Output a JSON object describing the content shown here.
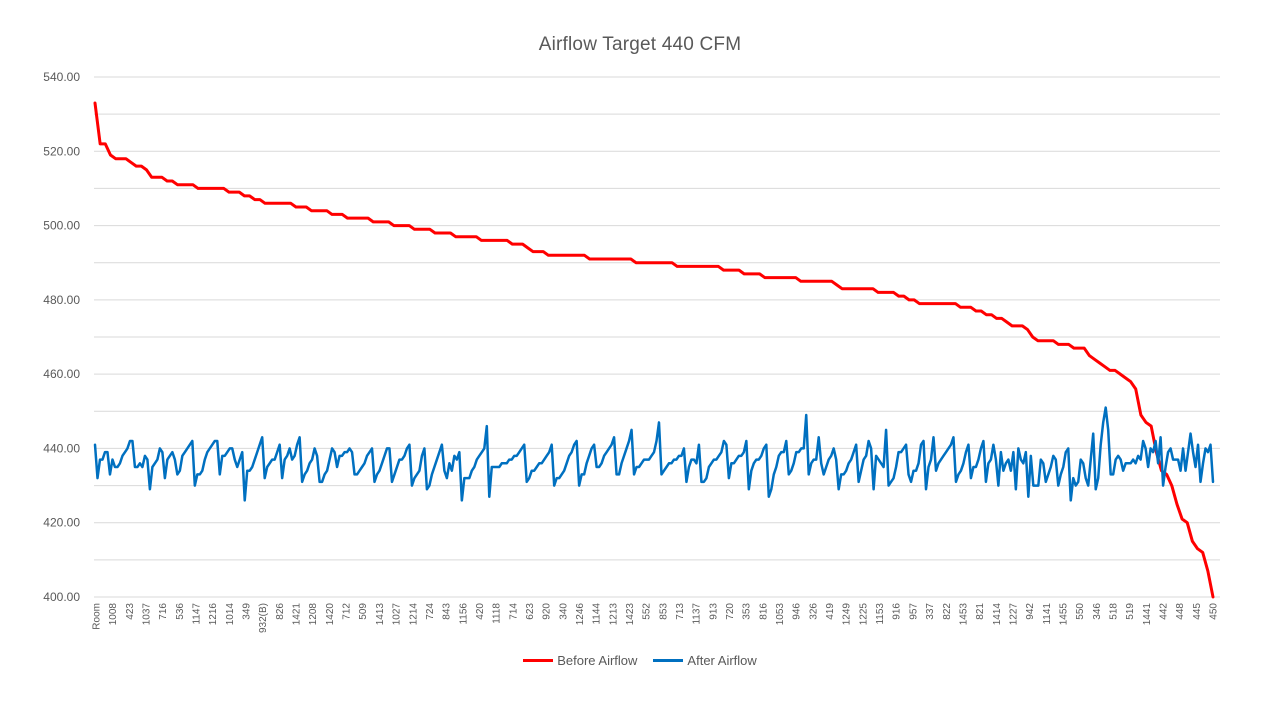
{
  "chart_data": {
    "type": "line",
    "title": "Airflow Target  440 CFM",
    "xlabel": "",
    "ylabel": "",
    "ylim": [
      400,
      540
    ],
    "yticks": [
      "400.00",
      "420.00",
      "440.00",
      "460.00",
      "480.00",
      "500.00",
      "520.00",
      "540.00"
    ],
    "x_tick_labels": [
      "Room",
      "1008",
      "423",
      "1037",
      "716",
      "536",
      "1147",
      "1216",
      "1014",
      "349",
      "932(B)",
      "826",
      "1421",
      "1208",
      "1420",
      "712",
      "509",
      "1413",
      "1027",
      "1214",
      "724",
      "843",
      "1156",
      "420",
      "1118",
      "714",
      "623",
      "920",
      "340",
      "1246",
      "1144",
      "1213",
      "1423",
      "552",
      "853",
      "713",
      "1137",
      "913",
      "720",
      "353",
      "816",
      "1053",
      "946",
      "326",
      "419",
      "1249",
      "1225",
      "1153",
      "916",
      "957",
      "337",
      "822",
      "1453",
      "821",
      "1414",
      "1227",
      "942",
      "1141",
      "1455",
      "550",
      "346",
      "518",
      "519",
      "1441",
      "442",
      "448",
      "445",
      "450"
    ],
    "legend_position": "bottom",
    "grid": true,
    "series": [
      {
        "name": "Before Airflow",
        "color": "#ff0000",
        "values": [
          533,
          522,
          522,
          519,
          518,
          518,
          518,
          517,
          516,
          516,
          515,
          513,
          513,
          513,
          512,
          512,
          511,
          511,
          511,
          511,
          510,
          510,
          510,
          510,
          510,
          510,
          509,
          509,
          509,
          508,
          508,
          507,
          507,
          506,
          506,
          506,
          506,
          506,
          506,
          505,
          505,
          505,
          504,
          504,
          504,
          504,
          503,
          503,
          503,
          502,
          502,
          502,
          502,
          502,
          501,
          501,
          501,
          501,
          500,
          500,
          500,
          500,
          499,
          499,
          499,
          499,
          498,
          498,
          498,
          498,
          497,
          497,
          497,
          497,
          497,
          496,
          496,
          496,
          496,
          496,
          496,
          495,
          495,
          495,
          494,
          493,
          493,
          493,
          492,
          492,
          492,
          492,
          492,
          492,
          492,
          492,
          491,
          491,
          491,
          491,
          491,
          491,
          491,
          491,
          491,
          490,
          490,
          490,
          490,
          490,
          490,
          490,
          490,
          489,
          489,
          489,
          489,
          489,
          489,
          489,
          489,
          489,
          488,
          488,
          488,
          488,
          487,
          487,
          487,
          487,
          486,
          486,
          486,
          486,
          486,
          486,
          486,
          485,
          485,
          485,
          485,
          485,
          485,
          485,
          484,
          483,
          483,
          483,
          483,
          483,
          483,
          483,
          482,
          482,
          482,
          482,
          481,
          481,
          480,
          480,
          479,
          479,
          479,
          479,
          479,
          479,
          479,
          479,
          478,
          478,
          478,
          477,
          477,
          476,
          476,
          475,
          475,
          474,
          473,
          473,
          473,
          472,
          470,
          469,
          469,
          469,
          469,
          468,
          468,
          468,
          467,
          467,
          467,
          465,
          464,
          463,
          462,
          461,
          461,
          460,
          459,
          458,
          456,
          449,
          447,
          446,
          439,
          434,
          433,
          430,
          425,
          421,
          420,
          415,
          413,
          412,
          407,
          400
        ]
      },
      {
        "name": "After Airflow",
        "color": "#0070c0",
        "values": [
          441,
          432,
          437,
          437,
          439,
          439,
          433,
          437,
          435,
          435,
          436,
          438,
          439,
          440,
          442,
          442,
          435,
          435,
          436,
          435,
          438,
          437,
          429,
          435,
          436,
          437,
          440,
          439,
          432,
          437,
          438,
          439,
          437,
          433,
          434,
          438,
          439,
          440,
          441,
          442,
          430,
          433,
          433,
          434,
          437,
          439,
          440,
          441,
          442,
          442,
          433,
          438,
          438,
          439,
          440,
          440,
          437,
          435,
          437,
          439,
          426,
          434,
          434,
          435,
          437,
          439,
          441,
          443,
          432,
          435,
          436,
          437,
          437,
          439,
          441,
          432,
          437,
          438,
          440,
          437,
          438,
          441,
          443,
          431,
          433,
          434,
          436,
          437,
          440,
          438,
          431,
          431,
          433,
          434,
          437,
          440,
          439,
          435,
          438,
          438,
          439,
          439,
          440,
          439,
          433,
          433,
          434,
          435,
          436,
          438,
          439,
          440,
          431,
          433,
          434,
          436,
          438,
          440,
          440,
          431,
          433,
          435,
          437,
          437,
          438,
          440,
          441,
          430,
          432,
          433,
          434,
          438,
          440,
          429,
          430,
          433,
          435,
          437,
          439,
          441,
          434,
          432,
          436,
          434,
          438,
          437,
          439,
          426,
          432,
          432,
          432,
          434,
          435,
          437,
          438,
          439,
          440,
          446,
          427,
          435,
          435,
          435,
          435,
          436,
          436,
          436,
          437,
          437,
          438,
          438,
          439,
          440,
          441,
          431,
          432,
          434,
          434,
          435,
          436,
          436,
          437,
          438,
          439,
          441,
          430,
          432,
          432,
          433,
          434,
          436,
          438,
          439,
          441,
          442,
          430,
          433,
          433,
          436,
          438,
          440,
          441,
          435,
          435,
          436,
          438,
          439,
          440,
          441,
          443,
          433,
          433,
          436,
          438,
          440,
          442,
          445,
          433,
          435,
          435,
          436,
          437,
          437,
          437,
          438,
          439,
          442,
          447,
          433,
          434,
          435,
          436,
          436,
          437,
          437,
          438,
          438,
          440,
          431,
          435,
          437,
          437,
          436,
          441,
          431,
          431,
          432,
          435,
          436,
          437,
          437,
          438,
          439,
          442,
          441,
          432,
          436,
          436,
          437,
          438,
          438,
          439,
          442,
          429,
          434,
          436,
          437,
          437,
          438,
          440,
          441,
          427,
          429,
          433,
          435,
          438,
          439,
          439,
          442,
          433,
          434,
          436,
          439,
          439,
          440,
          440,
          449,
          433,
          436,
          437,
          437,
          443,
          436,
          433,
          435,
          437,
          438,
          440,
          437,
          429,
          433,
          433,
          434,
          436,
          437,
          439,
          441,
          431,
          434,
          437,
          438,
          442,
          440,
          429,
          438,
          437,
          436,
          435,
          445,
          430,
          431,
          432,
          435,
          439,
          439,
          440,
          441,
          433,
          431,
          434,
          434,
          436,
          441,
          442,
          429,
          435,
          437,
          443,
          434,
          436,
          437,
          438,
          439,
          440,
          441,
          443,
          431,
          433,
          434,
          436,
          439,
          441,
          432,
          435,
          435,
          437,
          440,
          442,
          431,
          436,
          437,
          441,
          437,
          430,
          439,
          434,
          436,
          437,
          434,
          439,
          429,
          440,
          437,
          436,
          439,
          427,
          438,
          430,
          430,
          430,
          437,
          436,
          431,
          433,
          435,
          438,
          437,
          430,
          433,
          435,
          439,
          440,
          426,
          432,
          430,
          431,
          437,
          436,
          432,
          430,
          437,
          444,
          429,
          432,
          441,
          447,
          451,
          445,
          433,
          433,
          437,
          438,
          437,
          434,
          436,
          436,
          436,
          437,
          436,
          438,
          437,
          442,
          440,
          435,
          440,
          439,
          442,
          436,
          443,
          430,
          435,
          439,
          440,
          437,
          437,
          437,
          434,
          440,
          434,
          439,
          444,
          439,
          435,
          441,
          431,
          436,
          440,
          439,
          441,
          431
        ]
      }
    ]
  }
}
